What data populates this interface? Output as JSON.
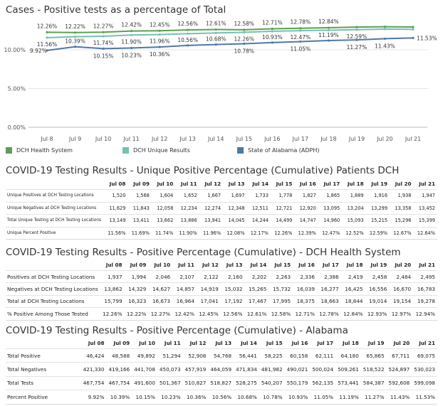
{
  "chart_title": "Cases - Positive tests as a percentage of Total",
  "chart_data": {
    "type": "line",
    "title": "Cases - Positive tests as a percentage of Total",
    "xlabel": "",
    "ylabel": "",
    "categories": [
      "Jul 8",
      "Jul 9",
      "Jul 10",
      "Jul 11",
      "Jul 12",
      "Jul 13",
      "Jul 14",
      "Jul 15",
      "Jul 16",
      "Jul 17",
      "Jul 18",
      "Jul 19",
      "Jul 20",
      "Jul 21"
    ],
    "ylim": [
      0,
      13
    ],
    "yticks": [
      "0.00%",
      "5.00%",
      "10.00%"
    ],
    "ytick_values": [
      0,
      5,
      10
    ],
    "grid": true,
    "legend_position": "bottom",
    "series": [
      {
        "name": "DCH Health System",
        "color": "#59a14f",
        "label_position": "above",
        "values": [
          12.26,
          12.22,
          12.27,
          12.42,
          12.45,
          12.56,
          12.61,
          12.58,
          12.71,
          12.78,
          12.84,
          12.93,
          12.97,
          12.94
        ],
        "labels": [
          "12.26%",
          "12.22%",
          "12.27%",
          "12.42%",
          "12.45%",
          "12.56%",
          "12.61%",
          "12.58%",
          "12.71%",
          "12.78%",
          "12.84%",
          "",
          "",
          ""
        ]
      },
      {
        "name": "DCH Unique Results",
        "color": "#76c0b1",
        "label_position": "below",
        "values": [
          11.56,
          11.69,
          11.74,
          11.9,
          11.96,
          12.08,
          12.17,
          12.26,
          12.39,
          12.47,
          12.52,
          12.59,
          12.67,
          12.64
        ],
        "labels": [
          "11.56%",
          "",
          "11.74%",
          "11.90%",
          "11.96%",
          "",
          "",
          "12.26%",
          "",
          "12.47%",
          "",
          "12.59%",
          "",
          ""
        ]
      },
      {
        "name": "State of Alabama (ADPH)",
        "color": "#4e79a7",
        "label_position": "mixed",
        "values": [
          9.92,
          10.39,
          10.15,
          10.23,
          10.36,
          10.56,
          10.68,
          10.78,
          10.93,
          11.05,
          11.19,
          11.27,
          11.43,
          11.53
        ],
        "labels": [
          "9.92%",
          "10.39%",
          "10.15%",
          "10.23%",
          "10.36%",
          "10.56%",
          "10.68%",
          "10.78%",
          "10.93%",
          "11.05%",
          "11.19%",
          "11.27%",
          "11.43%",
          "11.53%"
        ]
      }
    ]
  },
  "legend": [
    {
      "name": "DCH Health System",
      "color": "#59a14f"
    },
    {
      "name": "DCH Unique Results",
      "color": "#76c0b1"
    },
    {
      "name": "State of Alabama (ADPH)",
      "color": "#4e79a7"
    }
  ],
  "dates": [
    "Jul 08",
    "Jul 09",
    "Jul 10",
    "Jul 11",
    "Jul 12",
    "Jul 13",
    "Jul 14",
    "Jul 15",
    "Jul 16",
    "Jul 17",
    "Jul 18",
    "Jul 19",
    "Jul 20",
    "Jul 21"
  ],
  "tables": [
    {
      "title": "COVID-19 Testing Results - Unique Positive Percentage (Cumulative) Patients DCH",
      "rows": [
        {
          "label": "Unique Positives at DCH Testing Locations",
          "values": [
            "1,520",
            "1,568",
            "1,604",
            "1,652",
            "1,667",
            "1,697",
            "1,733",
            "1,778",
            "1,827",
            "1,865",
            "1,889",
            "1,916",
            "1,938",
            "1,947"
          ]
        },
        {
          "label": "Unique Negatives at DCH Testing Locations",
          "values": [
            "11,629",
            "11,843",
            "12,058",
            "12,234",
            "12,274",
            "12,348",
            "12,511",
            "12,721",
            "12,920",
            "13,095",
            "13,204",
            "13,299",
            "13,358",
            "13,452"
          ]
        },
        {
          "label": "Total Unique Testing at DCH Testing Locations",
          "values": [
            "13,149",
            "13,411",
            "13,662",
            "13,886",
            "13,941",
            "14,045",
            "14,244",
            "14,499",
            "14,747",
            "14,960",
            "15,093",
            "15,215",
            "15,296",
            "15,399"
          ]
        },
        {
          "label": "Unique Percent Positive",
          "values": [
            "11.56%",
            "11.69%",
            "11.74%",
            "11.90%",
            "11.96%",
            "12.08%",
            "12.17%",
            "12.26%",
            "12.39%",
            "12.47%",
            "12.52%",
            "12.59%",
            "12.67%",
            "12.64%"
          ]
        }
      ]
    },
    {
      "title": "COVID-19 Testing Results - Positive Percentage (Cumulative) - DCH Health System",
      "rows": [
        {
          "label": "Positives at DCH Testing Locations",
          "values": [
            "1,937",
            "1,994",
            "2,046",
            "2,107",
            "2,122",
            "2,160",
            "2,202",
            "2,263",
            "2,336",
            "2,386",
            "2,419",
            "2,458",
            "2,484",
            "2,495"
          ]
        },
        {
          "label": "Negatives at DCH Testing Locations",
          "values": [
            "13,862",
            "14,329",
            "14,627",
            "14,857",
            "14,919",
            "15,032",
            "15,265",
            "15,732",
            "16,039",
            "16,277",
            "16,425",
            "16,556",
            "16,670",
            "16,783"
          ]
        },
        {
          "label": "Total at DCH Testing Locations",
          "values": [
            "15,799",
            "16,323",
            "16,673",
            "16,964",
            "17,041",
            "17,192",
            "17,467",
            "17,995",
            "18,375",
            "18,663",
            "18,844",
            "19,014",
            "19,154",
            "19,278"
          ]
        },
        {
          "label": "% Positive Among Those Tested",
          "values": [
            "12.26%",
            "12.22%",
            "12.27%",
            "12.42%",
            "12.45%",
            "12.56%",
            "12.61%",
            "12.58%",
            "12.71%",
            "12.78%",
            "12.84%",
            "12.93%",
            "12.97%",
            "12.94%"
          ]
        }
      ]
    },
    {
      "title": "COVID-19 Testing Results - Positive Percentage (Cumulative) - Alabama",
      "rows": [
        {
          "label": "Total Positive",
          "values": [
            "46,424",
            "48,588",
            "49,892",
            "51,294",
            "52,908",
            "54,768",
            "56,441",
            "58,225",
            "60,158",
            "62,111",
            "64,180",
            "65,865",
            "67,711",
            "69,075"
          ]
        },
        {
          "label": "Total Negatives",
          "values": [
            "421,330",
            "419,166",
            "441,708",
            "450,073",
            "457,919",
            "464,059",
            "471,834",
            "481,982",
            "490,021",
            "500,024",
            "509,261",
            "518,522",
            "524,897",
            "530,023"
          ]
        },
        {
          "label": "Total Tests",
          "values": [
            "467,754",
            "467,754",
            "491,600",
            "501,367",
            "510,827",
            "518,827",
            "528,275",
            "540,207",
            "550,179",
            "562,135",
            "573,441",
            "584,387",
            "592,608",
            "599,098"
          ]
        },
        {
          "label": "Percent Positive",
          "values": [
            "9.92%",
            "10.39%",
            "10.15%",
            "10.23%",
            "10.36%",
            "10.56%",
            "10.68%",
            "10.78%",
            "10.93%",
            "11.05%",
            "11.19%",
            "11.27%",
            "11.43%",
            "11.53%"
          ]
        }
      ]
    }
  ]
}
